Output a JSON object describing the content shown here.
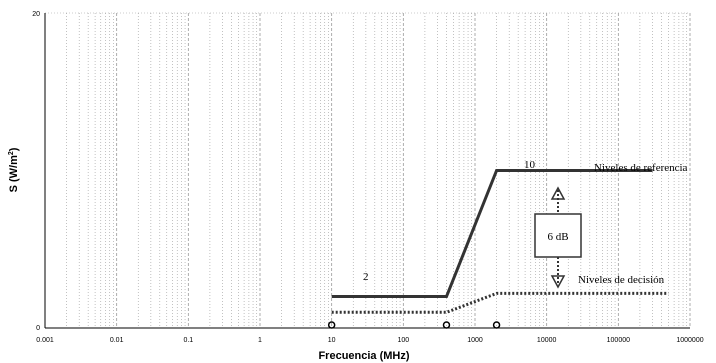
{
  "chart_data": {
    "type": "line",
    "xlabel": "Frecuencia (MHz)",
    "ylabel_main": "S (W/m",
    "ylabel_sup": "2",
    "ylabel_close": ")",
    "xscale": "log",
    "xlim": [
      0.001,
      1000000
    ],
    "ylim": [
      0,
      20
    ],
    "x_tick_labels": [
      "0.001",
      "0.01",
      "0.1",
      "1",
      "10",
      "100",
      "1000",
      "10000",
      "100000",
      "1000000"
    ],
    "y_tick_labels": [
      "0",
      "20"
    ],
    "grid": "vertical dotted/dashed log grid",
    "series": [
      {
        "style": "solid",
        "color": "#333333",
        "x": [
          10,
          400,
          2000,
          300000
        ],
        "y": [
          2,
          2,
          10,
          10
        ]
      },
      {
        "style": "dotted",
        "color": "#333333",
        "x": [
          10,
          400,
          2000,
          500000
        ],
        "y": [
          1,
          1,
          2.2,
          2.2
        ]
      }
    ],
    "markers_x": [
      10,
      400,
      2000
    ],
    "annotations": {
      "level_low": "2",
      "level_high": "10",
      "reference_levels": "Niveles de referencia",
      "decision_levels": "Niveles de decisión",
      "gap_label": "6 dB"
    }
  }
}
